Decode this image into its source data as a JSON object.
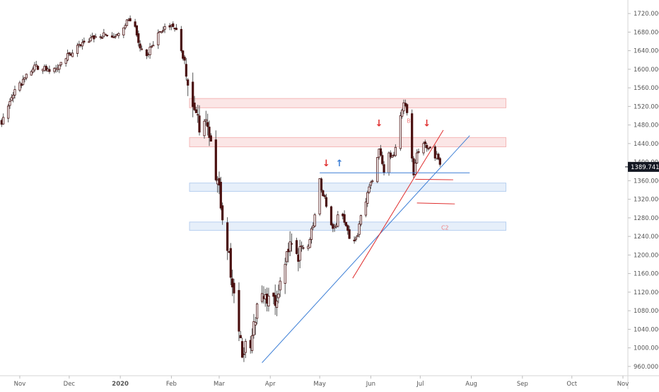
{
  "chart_data": {
    "type": "candlestick",
    "title": "",
    "xlabel": "",
    "ylabel": "",
    "ylim": [
      940,
      1740
    ],
    "y_ticks": [
      960,
      1000,
      1040,
      1080,
      1120,
      1160,
      1200,
      1240,
      1280,
      1320,
      1360,
      1400,
      1440,
      1480,
      1520,
      1560,
      1600,
      1640,
      1680,
      1720
    ],
    "y_tick_labels": [
      "960.000",
      "1000.000",
      "1040.000",
      "1080.000",
      "1120.000",
      "1160.000",
      "1200.000",
      "1240.000",
      "1280.000",
      "1320.000",
      "1360.000",
      "1400.000",
      "1440.000",
      "1480.000",
      "1520.000",
      "1560.000",
      "1600.000",
      "1640.000",
      "1680.000",
      "1720.000"
    ],
    "x_ticks": [
      {
        "label": "Nov",
        "day": 0
      },
      {
        "label": "Dec",
        "day": 30
      },
      {
        "label": "2020",
        "day": 61,
        "bold": true
      },
      {
        "label": "Feb",
        "day": 92
      },
      {
        "label": "Mar",
        "day": 121
      },
      {
        "label": "Apr",
        "day": 152
      },
      {
        "label": "May",
        "day": 182
      },
      {
        "label": "Jun",
        "day": 213
      },
      {
        "label": "Jul",
        "day": 243
      },
      {
        "label": "Aug",
        "day": 274
      },
      {
        "label": "Sep",
        "day": 305
      },
      {
        "label": "Oct",
        "day": 335
      },
      {
        "label": "Nov",
        "day": 366
      }
    ],
    "x_range_days": [
      -12,
      369
    ],
    "last_price": {
      "value": 1389.741,
      "label": "1389.741"
    },
    "close_series": [
      {
        "day": -11,
        "close": 1488
      },
      {
        "day": -8,
        "close": 1515
      },
      {
        "day": -4,
        "close": 1545
      },
      {
        "day": 0,
        "close": 1565
      },
      {
        "day": 4,
        "close": 1590
      },
      {
        "day": 10,
        "close": 1605
      },
      {
        "day": 15,
        "close": 1600
      },
      {
        "day": 20,
        "close": 1596
      },
      {
        "day": 25,
        "close": 1615
      },
      {
        "day": 30,
        "close": 1630
      },
      {
        "day": 35,
        "close": 1645
      },
      {
        "day": 40,
        "close": 1660
      },
      {
        "day": 46,
        "close": 1670
      },
      {
        "day": 52,
        "close": 1675
      },
      {
        "day": 57,
        "close": 1672
      },
      {
        "day": 62,
        "close": 1690
      },
      {
        "day": 66,
        "close": 1710
      },
      {
        "day": 70,
        "close": 1692
      },
      {
        "day": 73,
        "close": 1650
      },
      {
        "day": 76,
        "close": 1628
      },
      {
        "day": 80,
        "close": 1650
      },
      {
        "day": 84,
        "close": 1680
      },
      {
        "day": 88,
        "close": 1686
      },
      {
        "day": 92,
        "close": 1692
      },
      {
        "day": 96,
        "close": 1675
      },
      {
        "day": 98,
        "close": 1640
      },
      {
        "day": 101,
        "close": 1600
      },
      {
        "day": 103,
        "close": 1555
      },
      {
        "day": 106,
        "close": 1510
      },
      {
        "day": 109,
        "close": 1475
      },
      {
        "day": 112,
        "close": 1505
      },
      {
        "day": 114,
        "close": 1478
      },
      {
        "day": 116,
        "close": 1430
      },
      {
        "day": 119,
        "close": 1370
      },
      {
        "day": 122,
        "close": 1315
      },
      {
        "day": 125,
        "close": 1250
      },
      {
        "day": 128,
        "close": 1160
      },
      {
        "day": 131,
        "close": 1080
      },
      {
        "day": 134,
        "close": 1010
      },
      {
        "day": 136,
        "close": 975
      },
      {
        "day": 138,
        "close": 1030
      },
      {
        "day": 140,
        "close": 990
      },
      {
        "day": 143,
        "close": 1070
      },
      {
        "day": 146,
        "close": 1120
      },
      {
        "day": 149,
        "close": 1100
      },
      {
        "day": 152,
        "close": 1140
      },
      {
        "day": 155,
        "close": 1075
      },
      {
        "day": 158,
        "close": 1150
      },
      {
        "day": 161,
        "close": 1195
      },
      {
        "day": 164,
        "close": 1230
      },
      {
        "day": 167,
        "close": 1190
      },
      {
        "day": 170,
        "close": 1210
      },
      {
        "day": 173,
        "close": 1200
      },
      {
        "day": 176,
        "close": 1235
      },
      {
        "day": 179,
        "close": 1280
      },
      {
        "day": 182,
        "close": 1360
      },
      {
        "day": 185,
        "close": 1320
      },
      {
        "day": 188,
        "close": 1265
      },
      {
        "day": 191,
        "close": 1260
      },
      {
        "day": 194,
        "close": 1290
      },
      {
        "day": 197,
        "close": 1275
      },
      {
        "day": 200,
        "close": 1240
      },
      {
        "day": 202,
        "close": 1215
      },
      {
        "day": 205,
        "close": 1245
      },
      {
        "day": 208,
        "close": 1295
      },
      {
        "day": 211,
        "close": 1330
      },
      {
        "day": 213,
        "close": 1355
      },
      {
        "day": 216,
        "close": 1380
      },
      {
        "day": 218,
        "close": 1430
      },
      {
        "day": 221,
        "close": 1380
      },
      {
        "day": 224,
        "close": 1420
      },
      {
        "day": 227,
        "close": 1410
      },
      {
        "day": 230,
        "close": 1480
      },
      {
        "day": 233,
        "close": 1530
      },
      {
        "day": 235,
        "close": 1510
      },
      {
        "day": 237,
        "close": 1450
      },
      {
        "day": 239,
        "close": 1370
      },
      {
        "day": 241,
        "close": 1420
      },
      {
        "day": 244,
        "close": 1440
      },
      {
        "day": 247,
        "close": 1430
      },
      {
        "day": 250,
        "close": 1425
      },
      {
        "day": 253,
        "close": 1410
      },
      {
        "day": 255,
        "close": 1390
      }
    ],
    "zones": [
      {
        "name": "resistance-zone-upper",
        "from": 1517,
        "to": 1537,
        "start_day": 103,
        "end_day": 295,
        "color": "#f4b8b8"
      },
      {
        "name": "resistance-zone-lower",
        "from": 1433,
        "to": 1453,
        "start_day": 103,
        "end_day": 295,
        "color": "#f4b8b8"
      },
      {
        "name": "support-zone-upper",
        "from": 1337,
        "to": 1355,
        "start_day": 103,
        "end_day": 295,
        "color": "#b8d0f0"
      },
      {
        "name": "support-zone-lower",
        "from": 1253,
        "to": 1271,
        "start_day": 103,
        "end_day": 295,
        "color": "#b8d0f0"
      }
    ],
    "lines": [
      {
        "name": "blue-horizontal-line",
        "color": "#3d7fd6",
        "points": [
          {
            "day": 182,
            "value": 1377
          },
          {
            "day": 273,
            "value": 1377
          }
        ]
      },
      {
        "name": "blue-trendline",
        "color": "#3d7fd6",
        "points": [
          {
            "day": 147,
            "value": 968
          },
          {
            "day": 273,
            "value": 1457
          }
        ]
      },
      {
        "name": "red-trendline",
        "color": "#e03030",
        "points": [
          {
            "day": 202,
            "value": 1150
          },
          {
            "day": 257,
            "value": 1469
          }
        ]
      },
      {
        "name": "red-target-line-1",
        "color": "#e03030",
        "points": [
          {
            "day": 240,
            "value": 1363
          },
          {
            "day": 263,
            "value": 1362
          }
        ]
      },
      {
        "name": "red-target-line-2",
        "color": "#e03030",
        "points": [
          {
            "day": 241,
            "value": 1312
          },
          {
            "day": 264,
            "value": 1310
          }
        ]
      }
    ],
    "markers": [
      {
        "name": "red-down-arrow",
        "day": 186,
        "value": 1391,
        "glyph": "↓",
        "color": "#e03030"
      },
      {
        "name": "blue-up-arrow",
        "day": 194,
        "value": 1391,
        "glyph": "↑",
        "color": "#3d7fd6"
      },
      {
        "name": "red-down-arrow",
        "day": 218,
        "value": 1477,
        "glyph": "↓",
        "color": "#e03030"
      },
      {
        "name": "red-down-arrow",
        "day": 247,
        "value": 1477,
        "glyph": "↓",
        "color": "#e03030"
      }
    ],
    "text_annotations": [
      {
        "name": "label-b",
        "text": "B",
        "day": 236,
        "value": 1485,
        "color": "#f08080"
      },
      {
        "name": "label-c2",
        "text": "C2",
        "day": 258,
        "value": 1255,
        "color": "#f08080"
      }
    ]
  },
  "colors": {
    "candle": "#4a1010",
    "wick": "#555555",
    "axis_text": "#555555",
    "price_tag_bg": "#131722",
    "price_tag_text": "#ffffff"
  }
}
